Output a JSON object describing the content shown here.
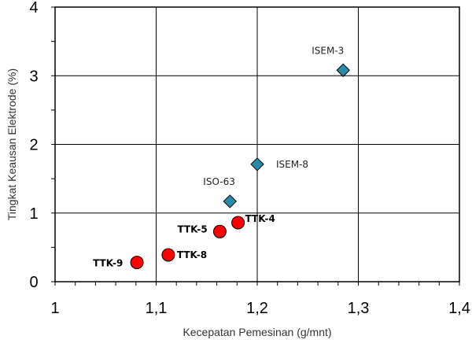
{
  "chart_data": {
    "type": "scatter",
    "title": "",
    "xlabel": "Kecepatan Pemesinan (g/mnt)",
    "ylabel": "Tingkat Keausan Elektrode (%)",
    "xlim": [
      1.0,
      1.4
    ],
    "ylim": [
      0,
      4
    ],
    "x_ticks": [
      "1",
      "1,1",
      "1,2",
      "1,3",
      "1,4"
    ],
    "y_ticks": [
      "0",
      "1",
      "2",
      "3",
      "4"
    ],
    "grid": true,
    "series": [
      {
        "marker": "circle",
        "color": "#ff0000",
        "points": [
          {
            "label": "TTK-9",
            "x": 1.081,
            "y": 0.28
          },
          {
            "label": "TTK-8",
            "x": 1.112,
            "y": 0.39
          },
          {
            "label": "TTK-5",
            "x": 1.163,
            "y": 0.73
          },
          {
            "label": "TTK-4",
            "x": 1.181,
            "y": 0.86
          }
        ]
      },
      {
        "marker": "diamond",
        "color": "#2a8ba8",
        "points": [
          {
            "label": "ISO-63",
            "x": 1.173,
            "y": 1.17
          },
          {
            "label": "ISEM-8",
            "x": 1.2,
            "y": 1.71
          },
          {
            "label": "ISEM-3",
            "x": 1.285,
            "y": 3.08
          }
        ]
      }
    ]
  }
}
